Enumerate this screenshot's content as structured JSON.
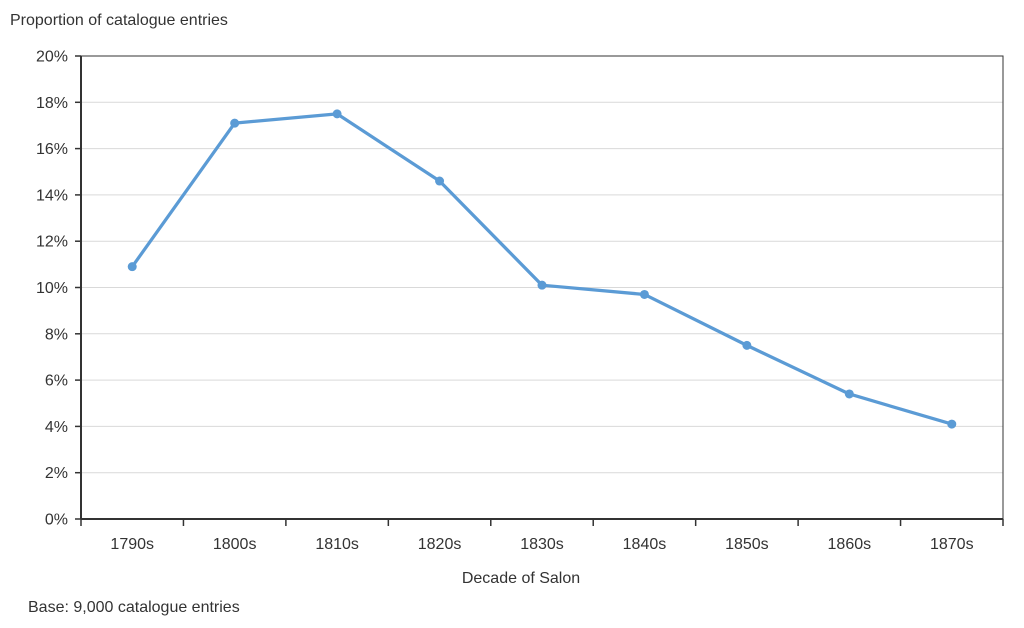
{
  "chart_data": {
    "type": "line",
    "title": "Proportion of catalogue entries",
    "xlabel": "Decade of Salon",
    "ylabel": "",
    "note": "Base: 9,000 catalogue entries",
    "categories": [
      "1790s",
      "1800s",
      "1810s",
      "1820s",
      "1830s",
      "1840s",
      "1850s",
      "1860s",
      "1870s"
    ],
    "values": [
      10.9,
      17.1,
      17.5,
      14.6,
      10.1,
      9.7,
      7.5,
      5.4,
      4.1
    ],
    "ylim": [
      0,
      20
    ],
    "ytick_step": 2,
    "ytick_suffix": "%",
    "grid": true,
    "legend": false,
    "line_color": "#5B9BD5",
    "marker_color": "#5B9BD5",
    "grid_color": "#D9D9D9",
    "axis_color": "#333333",
    "text_color": "#333333"
  }
}
